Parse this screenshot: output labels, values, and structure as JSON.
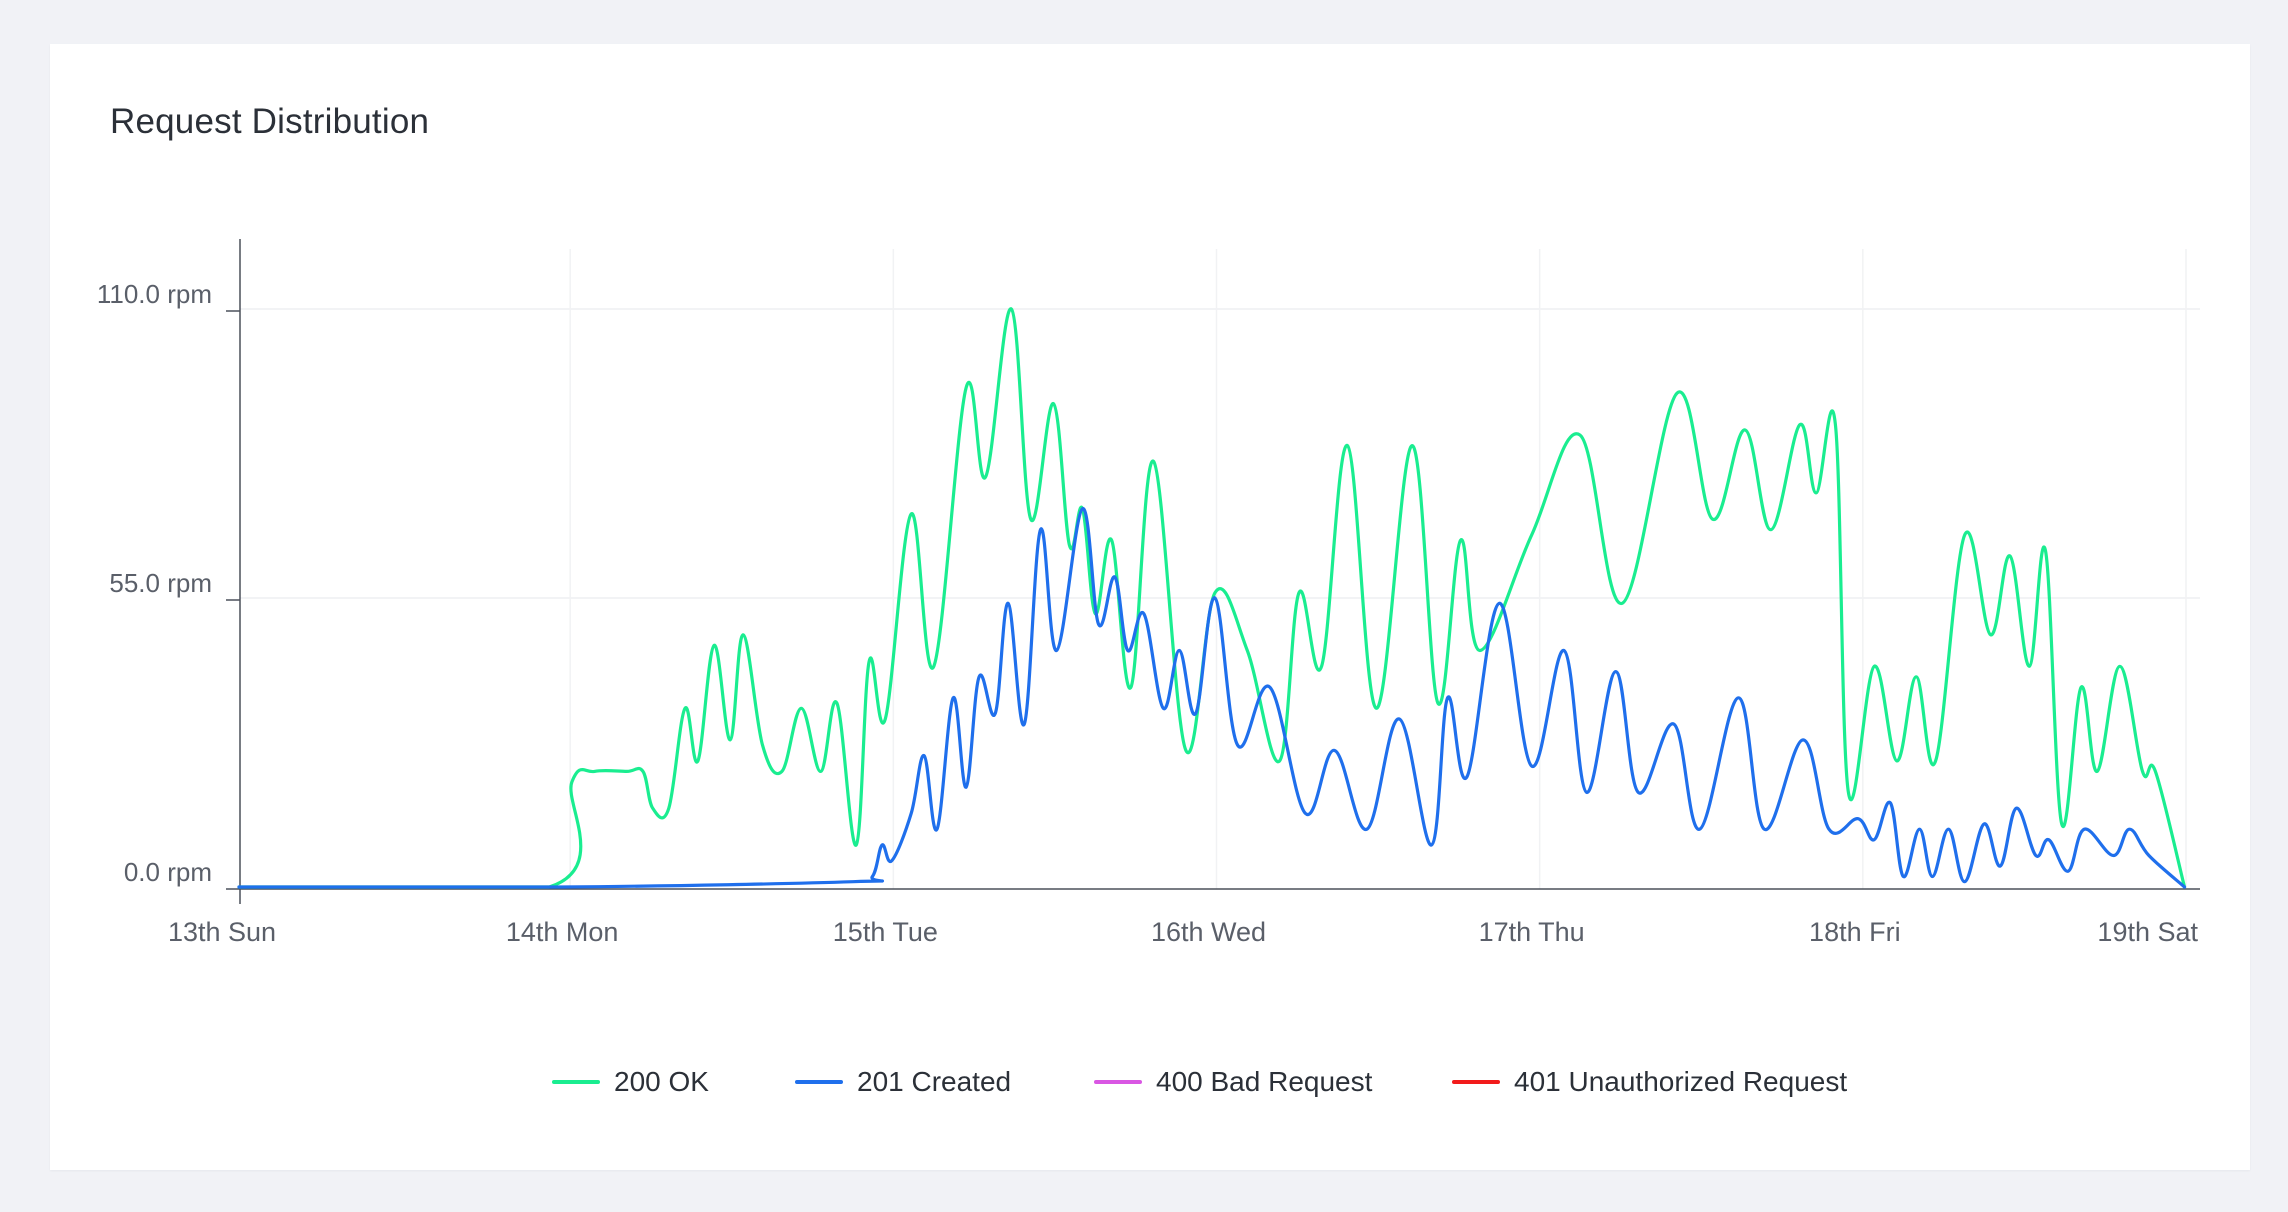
{
  "card": {
    "title": "Request Distribution"
  },
  "chart_data": {
    "type": "line",
    "title": "Request Distribution",
    "xlabel": "",
    "ylabel": "",
    "x_unit": "days since 13th Sun 00:00",
    "xlim": [
      0,
      6
    ],
    "ylim": [
      0,
      110
    ],
    "grid": true,
    "legend_position": "bottom",
    "yticks": [
      {
        "value": 0,
        "label": "0.0 rpm"
      },
      {
        "value": 55,
        "label": "55.0 rpm"
      },
      {
        "value": 110,
        "label": "110.0 rpm"
      }
    ],
    "xticks": [
      {
        "value": 0,
        "label": "13th Sun"
      },
      {
        "value": 1,
        "label": "14th Mon"
      },
      {
        "value": 2,
        "label": "15th Tue"
      },
      {
        "value": 3,
        "label": "16th Wed"
      },
      {
        "value": 4,
        "label": "17th Thu"
      },
      {
        "value": 5,
        "label": "18th Fri"
      },
      {
        "value": 6,
        "label": "19th Sat"
      }
    ],
    "series": [
      {
        "name": "200 OK",
        "color": "#1aed90",
        "points": [
          [
            0.0,
            0
          ],
          [
            0.96,
            0
          ],
          [
            1.03,
            20
          ],
          [
            1.1,
            22
          ],
          [
            1.2,
            22
          ],
          [
            1.25,
            22
          ],
          [
            1.28,
            15
          ],
          [
            1.33,
            15
          ],
          [
            1.38,
            34
          ],
          [
            1.42,
            24
          ],
          [
            1.47,
            46
          ],
          [
            1.52,
            28
          ],
          [
            1.56,
            48
          ],
          [
            1.62,
            27
          ],
          [
            1.68,
            22
          ],
          [
            1.74,
            34
          ],
          [
            1.8,
            22
          ],
          [
            1.85,
            35
          ],
          [
            1.91,
            8
          ],
          [
            1.95,
            43
          ],
          [
            2.0,
            32
          ],
          [
            2.08,
            71
          ],
          [
            2.15,
            42
          ],
          [
            2.25,
            95
          ],
          [
            2.31,
            78
          ],
          [
            2.39,
            110
          ],
          [
            2.45,
            70
          ],
          [
            2.52,
            92
          ],
          [
            2.57,
            65
          ],
          [
            2.61,
            72
          ],
          [
            2.65,
            52
          ],
          [
            2.7,
            66
          ],
          [
            2.76,
            38
          ],
          [
            2.83,
            81
          ],
          [
            2.93,
            26
          ],
          [
            3.02,
            56
          ],
          [
            3.12,
            45
          ],
          [
            3.22,
            24
          ],
          [
            3.28,
            56
          ],
          [
            3.35,
            42
          ],
          [
            3.43,
            84
          ],
          [
            3.52,
            34
          ],
          [
            3.63,
            84
          ],
          [
            3.71,
            35
          ],
          [
            3.78,
            66
          ],
          [
            3.84,
            45
          ],
          [
            4.0,
            67
          ],
          [
            4.15,
            86
          ],
          [
            4.28,
            54
          ],
          [
            4.45,
            94
          ],
          [
            4.56,
            70
          ],
          [
            4.66,
            87
          ],
          [
            4.74,
            68
          ],
          [
            4.83,
            88
          ],
          [
            4.88,
            75
          ],
          [
            4.94,
            88
          ],
          [
            4.98,
            18
          ],
          [
            5.06,
            42
          ],
          [
            5.13,
            24
          ],
          [
            5.19,
            40
          ],
          [
            5.25,
            24
          ],
          [
            5.34,
            67
          ],
          [
            5.42,
            48
          ],
          [
            5.48,
            63
          ],
          [
            5.54,
            42
          ],
          [
            5.59,
            64
          ],
          [
            5.64,
            12
          ],
          [
            5.7,
            38
          ],
          [
            5.75,
            22
          ],
          [
            5.82,
            42
          ],
          [
            5.89,
            22
          ],
          [
            5.93,
            22
          ],
          [
            6.02,
            0
          ]
        ]
      },
      {
        "name": "201 Created",
        "color": "#1f6fec",
        "points": [
          [
            0.0,
            0
          ],
          [
            1.0,
            0
          ],
          [
            1.9,
            1
          ],
          [
            1.96,
            2
          ],
          [
            1.99,
            8
          ],
          [
            2.02,
            5
          ],
          [
            2.08,
            14
          ],
          [
            2.12,
            25
          ],
          [
            2.16,
            11
          ],
          [
            2.21,
            36
          ],
          [
            2.25,
            19
          ],
          [
            2.29,
            40
          ],
          [
            2.34,
            33
          ],
          [
            2.38,
            54
          ],
          [
            2.43,
            31
          ],
          [
            2.48,
            68
          ],
          [
            2.53,
            45
          ],
          [
            2.61,
            72
          ],
          [
            2.66,
            50
          ],
          [
            2.71,
            59
          ],
          [
            2.75,
            45
          ],
          [
            2.8,
            52
          ],
          [
            2.86,
            34
          ],
          [
            2.91,
            45
          ],
          [
            2.96,
            33
          ],
          [
            3.02,
            55
          ],
          [
            3.09,
            27
          ],
          [
            3.19,
            38
          ],
          [
            3.3,
            14
          ],
          [
            3.39,
            26
          ],
          [
            3.49,
            11
          ],
          [
            3.59,
            32
          ],
          [
            3.69,
            8
          ],
          [
            3.74,
            36
          ],
          [
            3.8,
            21
          ],
          [
            3.9,
            54
          ],
          [
            4.0,
            23
          ],
          [
            4.1,
            45
          ],
          [
            4.17,
            18
          ],
          [
            4.26,
            41
          ],
          [
            4.33,
            18
          ],
          [
            4.44,
            31
          ],
          [
            4.52,
            11
          ],
          [
            4.64,
            36
          ],
          [
            4.72,
            11
          ],
          [
            4.84,
            28
          ],
          [
            4.92,
            11
          ],
          [
            5.01,
            13
          ],
          [
            5.06,
            9
          ],
          [
            5.11,
            16
          ],
          [
            5.15,
            2
          ],
          [
            5.2,
            11
          ],
          [
            5.24,
            2
          ],
          [
            5.29,
            11
          ],
          [
            5.34,
            1
          ],
          [
            5.4,
            12
          ],
          [
            5.45,
            4
          ],
          [
            5.5,
            15
          ],
          [
            5.56,
            6
          ],
          [
            5.6,
            9
          ],
          [
            5.66,
            3
          ],
          [
            5.71,
            11
          ],
          [
            5.8,
            6
          ],
          [
            5.85,
            11
          ],
          [
            5.91,
            6
          ],
          [
            6.02,
            0
          ]
        ]
      },
      {
        "name": "400 Bad Request",
        "color": "#d957e3",
        "points": []
      },
      {
        "name": "401 Unauthorized Request",
        "color": "#f21b1b",
        "points": []
      }
    ]
  }
}
